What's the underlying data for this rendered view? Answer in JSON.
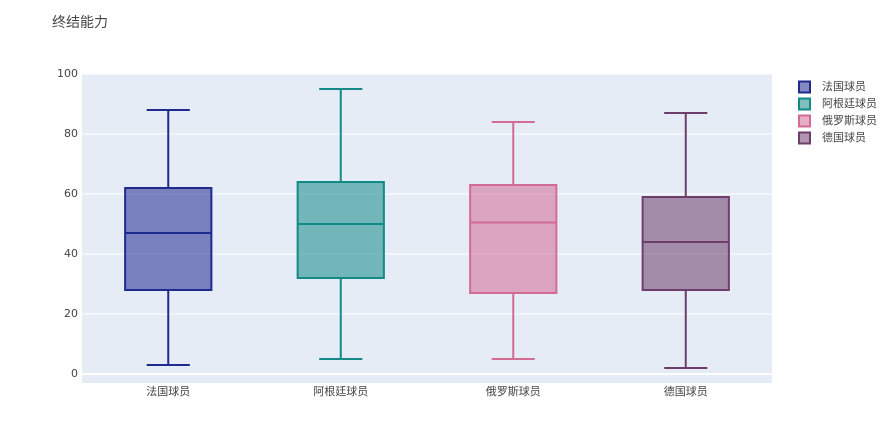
{
  "chart_data": {
    "type": "box",
    "title": "终结能力",
    "categories": [
      "法国球员",
      "阿根廷球员",
      "俄罗斯球员",
      "德国球员"
    ],
    "series": [
      {
        "name": "法国球员",
        "color": "#1f2a8f",
        "min": 3,
        "q1": 28,
        "median": 47,
        "q3": 62,
        "max": 88
      },
      {
        "name": "阿根廷球员",
        "color": "#138a87",
        "min": 5,
        "q1": 32,
        "median": 50,
        "q3": 64,
        "max": 95
      },
      {
        "name": "俄罗斯球员",
        "color": "#d36c94",
        "min": 5,
        "q1": 27,
        "median": 50.5,
        "q3": 63,
        "max": 84
      },
      {
        "name": "德国球员",
        "color": "#6e3e6b",
        "min": 2,
        "q1": 28,
        "median": 44,
        "q3": 59,
        "max": 87
      }
    ],
    "ylim": [
      -3,
      100
    ],
    "yticks": [
      0,
      20,
      40,
      60,
      80,
      100
    ],
    "grid": true,
    "legend": "right"
  }
}
